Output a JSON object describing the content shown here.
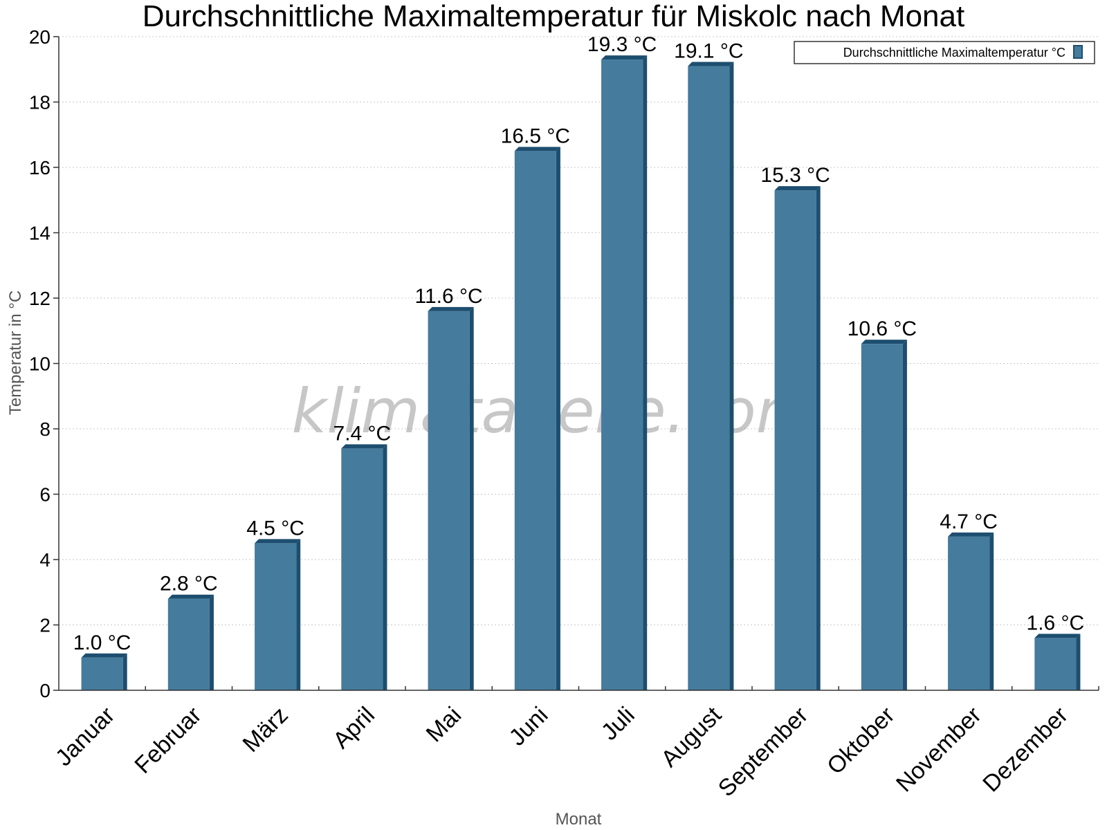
{
  "chart_data": {
    "type": "bar",
    "title": "Durchschnittliche Maximaltemperatur für Miskolc nach Monat",
    "xlabel": "Monat",
    "ylabel": "Temperatur in °C",
    "ylim": [
      0,
      20
    ],
    "yticks": [
      "0",
      "2",
      "4",
      "6",
      "8",
      "10",
      "12",
      "14",
      "16",
      "18",
      "20"
    ],
    "grid": true,
    "legend_position": "top-right",
    "categories": [
      "Januar",
      "Februar",
      "März",
      "April",
      "Mai",
      "Juni",
      "Juli",
      "August",
      "September",
      "Oktober",
      "November",
      "Dezember"
    ],
    "series": [
      {
        "name": "Durchschnittliche Maximaltemperatur °C",
        "values": [
          1.0,
          2.8,
          4.5,
          7.4,
          11.6,
          16.5,
          19.3,
          19.1,
          15.3,
          10.6,
          4.7,
          1.6
        ],
        "labels": [
          "1.0 °C",
          "2.8 °C",
          "4.5 °C",
          "7.4 °C",
          "11.6 °C",
          "16.5 °C",
          "19.3 °C",
          "19.1 °C",
          "15.3 °C",
          "10.6 °C",
          "4.7 °C",
          "1.6 °C"
        ]
      }
    ],
    "colors": {
      "bar_face": "#457b9d",
      "bar_side": "#1d4e6f",
      "gridline": "#c8c8c8",
      "axis": "#333333"
    }
  },
  "watermark": "klimatabelle.com"
}
